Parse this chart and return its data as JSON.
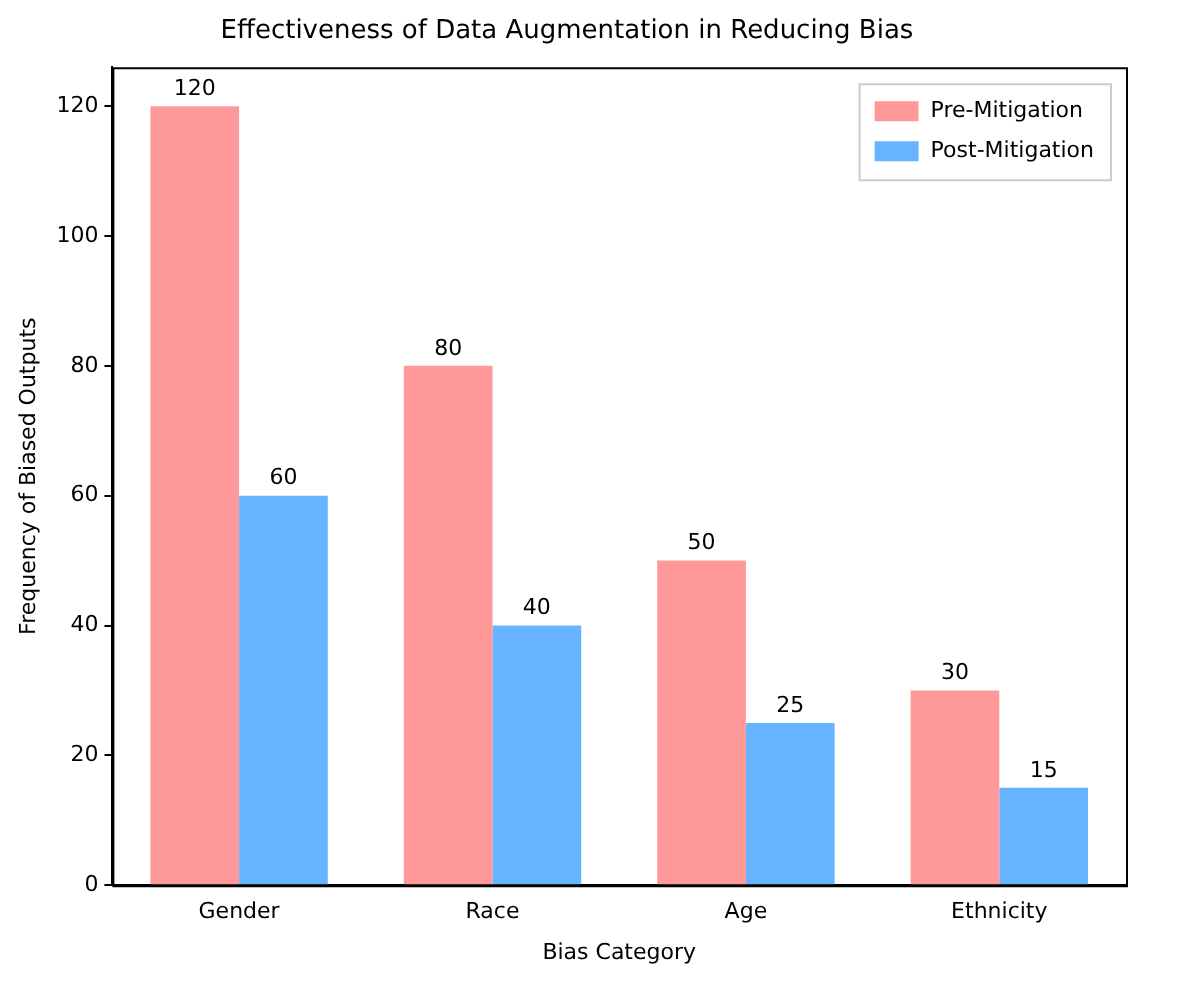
{
  "chart_data": {
    "type": "bar",
    "title": "Effectiveness of Data Augmentation in Reducing Bias",
    "xlabel": "Bias Category",
    "ylabel": "Frequency of Biased Outputs",
    "categories": [
      "Gender",
      "Race",
      "Age",
      "Ethnicity"
    ],
    "series": [
      {
        "name": "Pre-Mitigation",
        "color": "#ff9999",
        "values": [
          120,
          80,
          50,
          30
        ]
      },
      {
        "name": "Post-Mitigation",
        "color": "#66b3ff",
        "values": [
          60,
          40,
          25,
          15
        ]
      }
    ],
    "ylim": [
      0,
      126
    ],
    "yticks": [
      0,
      20,
      40,
      60,
      80,
      100,
      120
    ],
    "grid": false,
    "legend": "top right",
    "data_labels": true
  }
}
